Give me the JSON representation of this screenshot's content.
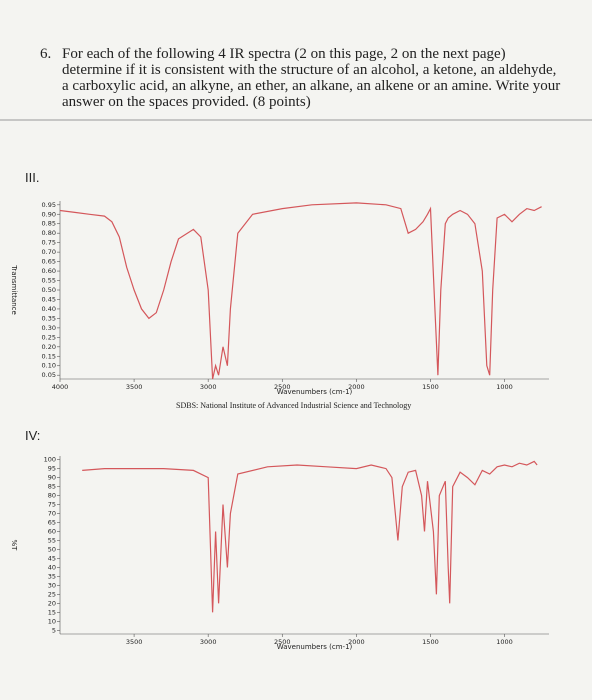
{
  "question": {
    "number": "6.",
    "text": "For each of the following 4 IR spectra (2 on this page, 2 on the next page) determine if it is consistent with the structure of an alcohol, a ketone, an aldehyde, a carboxylic acid, an alkyne, an ether, an alkane, an alkene or an amine. Write your answer on the spaces provided. (8 points)"
  },
  "source": "SDBS: National Institute of Advanced Industrial Science and Technology",
  "chart_data": [
    {
      "type": "line",
      "label": "III.",
      "x_label": "Wavenumbers (cm-1)",
      "y_label": "Transmittance",
      "x": [
        4000,
        3900,
        3800,
        3700,
        3650,
        3600,
        3550,
        3500,
        3450,
        3400,
        3350,
        3300,
        3250,
        3200,
        3100,
        3050,
        3000,
        2970,
        2950,
        2930,
        2900,
        2870,
        2850,
        2800,
        2700,
        2500,
        2300,
        2000,
        1800,
        1700,
        1650,
        1600,
        1550,
        1520,
        1500,
        1470,
        1450,
        1430,
        1400,
        1380,
        1350,
        1300,
        1250,
        1200,
        1150,
        1120,
        1100,
        1080,
        1050,
        1000,
        950,
        900,
        850,
        800,
        750
      ],
      "series": [
        {
          "color": "#d4575b",
          "values": [
            0.92,
            0.91,
            0.9,
            0.89,
            0.86,
            0.78,
            0.62,
            0.5,
            0.4,
            0.35,
            0.38,
            0.5,
            0.65,
            0.77,
            0.82,
            0.78,
            0.5,
            0.03,
            0.1,
            0.05,
            0.2,
            0.1,
            0.4,
            0.8,
            0.9,
            0.93,
            0.95,
            0.96,
            0.95,
            0.93,
            0.8,
            0.82,
            0.86,
            0.9,
            0.93,
            0.4,
            0.05,
            0.5,
            0.85,
            0.88,
            0.9,
            0.92,
            0.9,
            0.85,
            0.6,
            0.1,
            0.05,
            0.5,
            0.88,
            0.9,
            0.86,
            0.9,
            0.93,
            0.92,
            0.94
          ]
        }
      ],
      "xlim": [
        4000,
        700
      ],
      "xticks": [
        4000,
        3500,
        3000,
        2500,
        2000,
        1500,
        1000
      ],
      "ylim": [
        0.03,
        0.97
      ],
      "yticks": [
        0.95,
        {
          "value": 0.9,
          "label": "0.90"
        },
        0.85,
        {
          "value": 0.8,
          "label": "0.80"
        },
        0.75,
        {
          "value": 0.7,
          "label": "0.70"
        },
        0.65,
        {
          "value": 0.6,
          "label": "0.60"
        },
        0.55,
        {
          "value": 0.5,
          "label": "0.50"
        },
        0.45,
        {
          "value": 0.4,
          "label": "0.40"
        },
        0.35,
        {
          "value": 0.3,
          "label": "0.30"
        },
        0.25,
        {
          "value": 0.2,
          "label": "0.20"
        },
        0.15,
        {
          "value": 0.1,
          "label": "0.10"
        },
        0.05
      ]
    },
    {
      "type": "line",
      "label": "IV:",
      "x_label": "Wavenumbers (cm-1)",
      "y_label": "%T",
      "x": [
        3850,
        3700,
        3500,
        3300,
        3100,
        3000,
        2970,
        2950,
        2930,
        2900,
        2870,
        2850,
        2800,
        2600,
        2400,
        2200,
        2000,
        1900,
        1800,
        1760,
        1720,
        1690,
        1650,
        1600,
        1560,
        1540,
        1520,
        1480,
        1460,
        1440,
        1400,
        1380,
        1370,
        1350,
        1300,
        1250,
        1200,
        1150,
        1100,
        1050,
        1000,
        950,
        900,
        850,
        800,
        780
      ],
      "series": [
        {
          "color": "#d4575b",
          "values": [
            94,
            95,
            95,
            95,
            94,
            90,
            15,
            60,
            20,
            75,
            40,
            70,
            92,
            96,
            97,
            96,
            95,
            97,
            95,
            90,
            55,
            85,
            93,
            94,
            80,
            60,
            88,
            60,
            25,
            80,
            88,
            40,
            20,
            85,
            93,
            90,
            86,
            94,
            92,
            96,
            97,
            96,
            98,
            97,
            99,
            97
          ]
        }
      ],
      "xlim": [
        4000,
        700
      ],
      "xticks": [
        3500,
        3000,
        2500,
        2000,
        1500,
        1000
      ],
      "ylim": [
        3,
        102
      ],
      "yticks": [
        100,
        95,
        90,
        85,
        80,
        75,
        70,
        65,
        60,
        55,
        50,
        45,
        40,
        35,
        30,
        25,
        20,
        15,
        10,
        5
      ]
    }
  ]
}
